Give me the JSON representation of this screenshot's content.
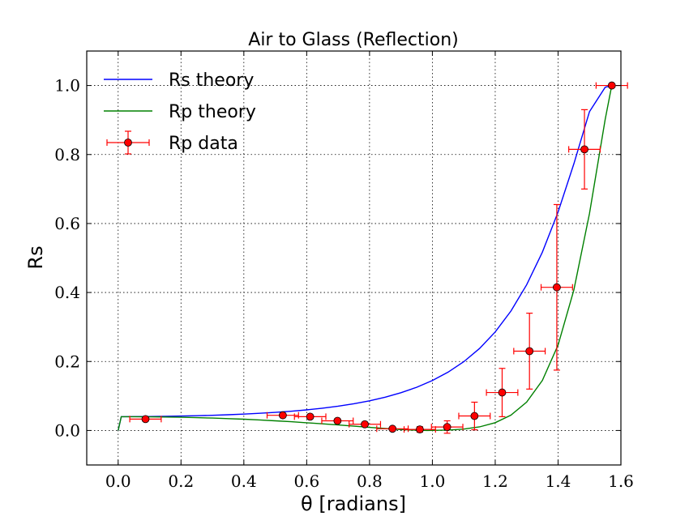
{
  "chart_data": {
    "type": "line",
    "title": "Air to Glass (Reflection)",
    "xlabel": "θ [radians]",
    "ylabel": "Rs",
    "xlim": [
      -0.1,
      1.6
    ],
    "ylim": [
      -0.1,
      1.1
    ],
    "xticks": [
      0.0,
      0.2,
      0.4,
      0.6,
      0.8,
      1.0,
      1.2,
      1.4,
      1.6
    ],
    "xtick_labels": [
      "0.0",
      "0.2",
      "0.4",
      "0.6",
      "0.8",
      "1.0",
      "1.2",
      "1.4",
      "1.6"
    ],
    "yticks": [
      0.0,
      0.2,
      0.4,
      0.6,
      0.8,
      1.0
    ],
    "ytick_labels": [
      "0.0",
      "0.2",
      "0.4",
      "0.6",
      "0.8",
      "1.0"
    ],
    "grid": true,
    "legend_position": "top-left",
    "series": [
      {
        "name": "Rs theory",
        "kind": "line",
        "color": "#0000ff",
        "x": [
          0.0,
          0.01,
          0.05,
          0.1,
          0.15,
          0.2,
          0.25,
          0.3,
          0.35,
          0.4,
          0.45,
          0.5,
          0.55,
          0.6,
          0.65,
          0.7,
          0.75,
          0.8,
          0.85,
          0.9,
          0.95,
          1.0,
          1.05,
          1.1,
          1.15,
          1.2,
          1.25,
          1.3,
          1.35,
          1.4,
          1.45,
          1.5,
          1.55,
          1.5708
        ],
        "y": [
          0.0,
          0.04,
          0.0401,
          0.0405,
          0.041,
          0.0418,
          0.0428,
          0.044,
          0.0456,
          0.0475,
          0.0498,
          0.0525,
          0.0558,
          0.0598,
          0.0646,
          0.0704,
          0.0775,
          0.086,
          0.0965,
          0.1094,
          0.1252,
          0.1448,
          0.1691,
          0.1995,
          0.2377,
          0.2857,
          0.3463,
          0.4223,
          0.517,
          0.6333,
          0.7727,
          0.924,
          0.995,
          1.0
        ]
      },
      {
        "name": "Rp theory",
        "kind": "line",
        "color": "#008000",
        "x": [
          0.0,
          0.01,
          0.05,
          0.1,
          0.15,
          0.2,
          0.25,
          0.3,
          0.35,
          0.4,
          0.45,
          0.5,
          0.55,
          0.6,
          0.65,
          0.7,
          0.75,
          0.8,
          0.85,
          0.9,
          0.95,
          0.983,
          1.0,
          1.05,
          1.1,
          1.15,
          1.2,
          1.25,
          1.3,
          1.35,
          1.4,
          1.45,
          1.5,
          1.55,
          1.5708
        ],
        "y": [
          0.0,
          0.04,
          0.0399,
          0.0395,
          0.039,
          0.0382,
          0.0372,
          0.036,
          0.0344,
          0.0326,
          0.0305,
          0.0281,
          0.0254,
          0.0224,
          0.0192,
          0.0159,
          0.0124,
          0.0089,
          0.0056,
          0.0027,
          0.0007,
          0.0,
          0.0002,
          0.0012,
          0.0041,
          0.0104,
          0.0226,
          0.0445,
          0.0823,
          0.1449,
          0.2477,
          0.4067,
          0.6285,
          0.9019,
          1.0
        ]
      },
      {
        "name": "Rp data",
        "kind": "errorbar",
        "color": "#ff0000",
        "x": [
          0.087,
          0.524,
          0.611,
          0.698,
          0.785,
          0.873,
          0.96,
          1.047,
          1.134,
          1.222,
          1.309,
          1.396,
          1.484,
          1.571
        ],
        "y": [
          0.033,
          0.044,
          0.04,
          0.028,
          0.018,
          0.005,
          0.003,
          0.01,
          0.042,
          0.11,
          0.23,
          0.415,
          0.815,
          1.0
        ],
        "xerr": [
          0.05,
          0.05,
          0.05,
          0.05,
          0.05,
          0.05,
          0.05,
          0.05,
          0.05,
          0.05,
          0.05,
          0.05,
          0.05,
          0.05
        ],
        "yerr": [
          0.0,
          0.0,
          0.0,
          0.0,
          0.0,
          0.0,
          0.008,
          0.018,
          0.04,
          0.07,
          0.11,
          0.24,
          0.115,
          0.0
        ]
      }
    ]
  }
}
